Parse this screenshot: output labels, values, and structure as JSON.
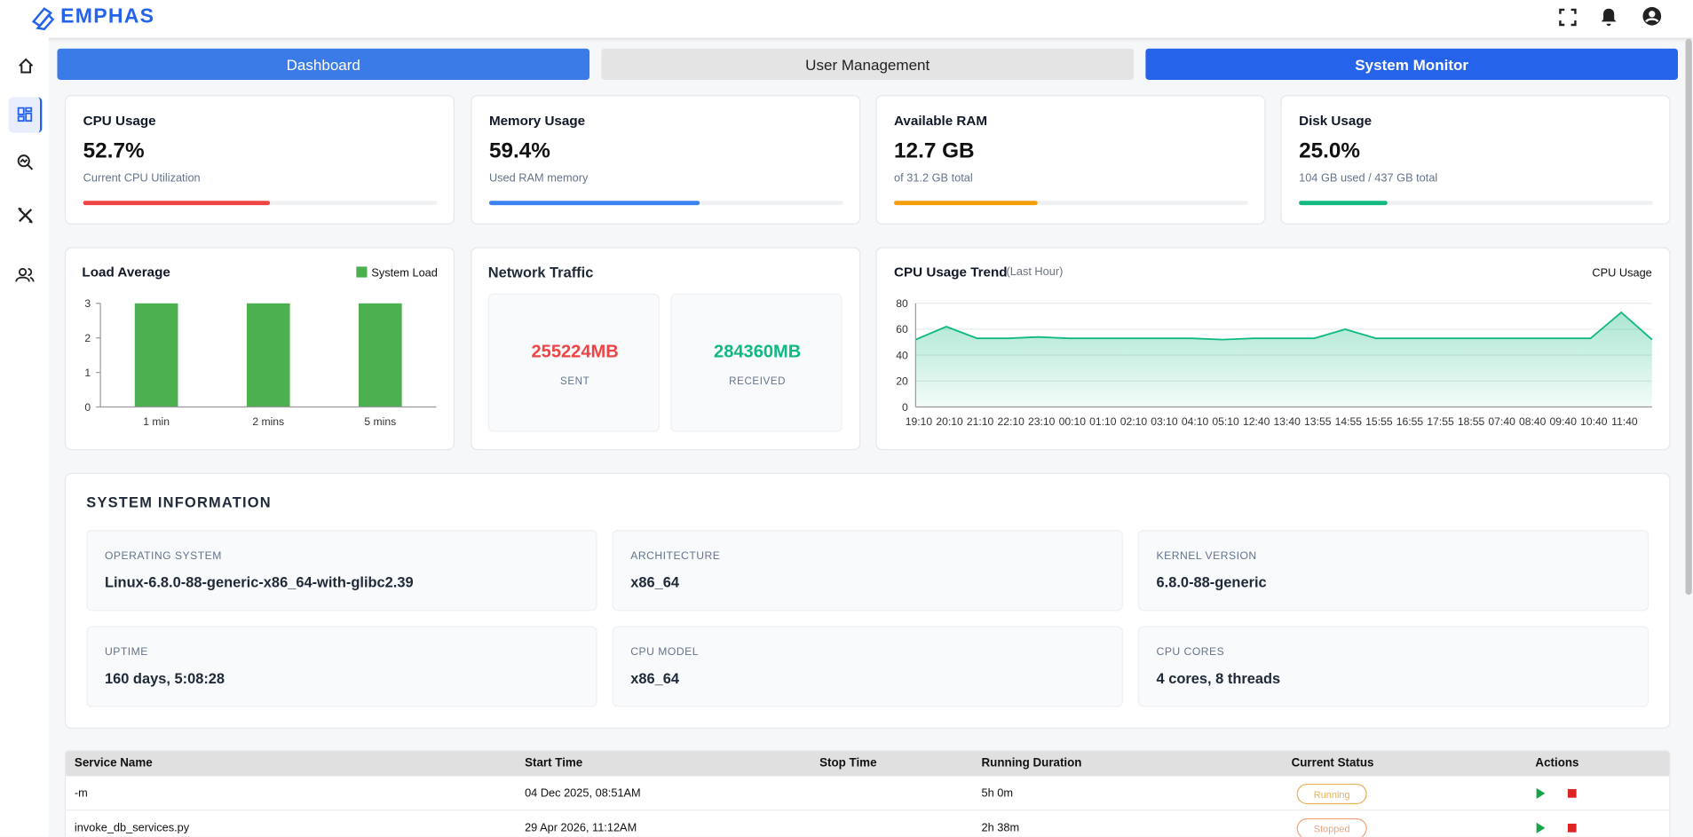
{
  "header": {
    "logo": "EMPHAS"
  },
  "tabs": [
    "Dashboard",
    "User Management",
    "System Monitor"
  ],
  "stats": [
    {
      "title": "CPU Usage",
      "value": "52.7%",
      "caption": "Current CPU Utilization",
      "progress": 52.7,
      "color": "#ef4444"
    },
    {
      "title": "Memory Usage",
      "value": "59.4%",
      "caption": "Used RAM memory",
      "progress": 59.4,
      "color": "#3b82f6"
    },
    {
      "title": "Available RAM",
      "value": "12.7 GB",
      "caption": "of 31.2 GB total",
      "progress": 40.7,
      "color": "#f59e0b"
    },
    {
      "title": "Disk Usage",
      "value": "25.0%",
      "caption": "104 GB used / 437 GB total",
      "progress": 25.0,
      "color": "#10b981"
    }
  ],
  "load_chart": {
    "type": "bar",
    "title": "Load Average",
    "categories": [
      "1 min",
      "2 mins",
      "5 mins"
    ],
    "series": [
      {
        "name": "System Load",
        "color": "#4caf50",
        "values": [
          3,
          3,
          3
        ]
      }
    ],
    "ylim": [
      0,
      3
    ],
    "yticks": [
      0,
      1,
      2,
      3
    ]
  },
  "network": {
    "title": "Network Traffic",
    "items": [
      {
        "value": "255224MB",
        "label": "SENT",
        "color": "#ef4444"
      },
      {
        "value": "284360MB",
        "label": "RECEIVED",
        "color": "#10b981"
      }
    ]
  },
  "cpu_chart": {
    "type": "line",
    "title": "CPU Usage Trend",
    "subtitle": "(Last Hour)",
    "categories": [
      "19:10",
      "20:10",
      "21:10",
      "22:10",
      "23:10",
      "00:10",
      "01:10",
      "02:10",
      "03:10",
      "04:10",
      "05:10",
      "12:40",
      "13:40",
      "13:55",
      "14:55",
      "15:55",
      "16:55",
      "17:55",
      "18:55",
      "07:40",
      "08:40",
      "09:40",
      "10:40",
      "11:40",
      null
    ],
    "series": [
      {
        "name": "CPU Usage",
        "color": "#10b981",
        "values": [
          52,
          62,
          53,
          53,
          54,
          53,
          53,
          53,
          53,
          53,
          52,
          53,
          53,
          53,
          60,
          53,
          53,
          53,
          53,
          53,
          53,
          53,
          53,
          73,
          52
        ]
      }
    ],
    "ylim": [
      0,
      80
    ],
    "yticks": [
      0,
      20,
      40,
      60,
      80
    ],
    "grid": true
  },
  "system_info": {
    "title": "SYSTEM INFORMATION",
    "items": [
      {
        "label": "OPERATING SYSTEM",
        "value": "Linux-6.8.0-88-generic-x86_64-with-glibc2.39"
      },
      {
        "label": "ARCHITECTURE",
        "value": "x86_64"
      },
      {
        "label": "KERNEL VERSION",
        "value": "6.8.0-88-generic"
      },
      {
        "label": "UPTIME",
        "value": "160 days, 5:08:28"
      },
      {
        "label": "CPU MODEL",
        "value": "x86_64"
      },
      {
        "label": "CPU CORES",
        "value": "4 cores, 8 threads"
      }
    ]
  },
  "table": {
    "columns": [
      "Service Name",
      "Start Time",
      "Stop Time",
      "Running Duration",
      "Current Status",
      "Actions"
    ],
    "rows": [
      [
        "-m",
        "04 Dec 2025, 08:51AM",
        null,
        "5h 0m",
        "Running"
      ],
      [
        "invoke_db_services.py",
        "29 Apr 2026, 11:12AM",
        null,
        "2h 38m",
        "Stopped"
      ]
    ]
  }
}
